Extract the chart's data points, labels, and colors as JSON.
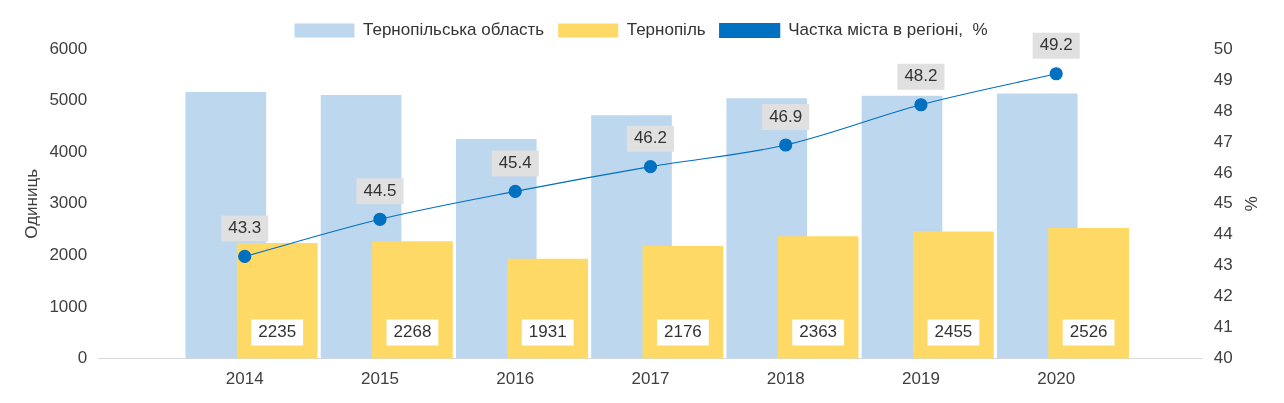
{
  "chart_data": {
    "type": "bar",
    "categories": [
      "2014",
      "2015",
      "2016",
      "2017",
      "2018",
      "2019",
      "2020"
    ],
    "ylabel": "Одиниць",
    "y2label": "%",
    "series": [
      {
        "name": "Тернопільська область",
        "color": "#bdd7ee",
        "values": [
          5160,
          5100,
          4250,
          4710,
          5040,
          5090,
          5130
        ]
      },
      {
        "name": "Тернопіль",
        "color": "#ffd966",
        "values": [
          2235,
          2268,
          1931,
          2176,
          2363,
          2455,
          2526
        ],
        "value_labels": [
          "2235",
          "2268",
          "1931",
          "2176",
          "2363",
          "2455",
          "2526"
        ]
      },
      {
        "name": "Частка міста в регіоні,  %",
        "type": "line",
        "axis": "y2",
        "color": "#0070c0",
        "marker": "circle",
        "values": [
          43.3,
          44.5,
          45.4,
          46.2,
          46.9,
          48.2,
          49.2
        ],
        "value_labels": [
          "43.3",
          "44.5",
          "45.4",
          "46.2",
          "46.9",
          "48.2",
          "49.2"
        ]
      }
    ],
    "ylim": [
      0,
      6000
    ],
    "yticks": [
      0,
      1000,
      2000,
      3000,
      4000,
      5000,
      6000
    ],
    "y2lim": [
      40,
      50
    ],
    "y2ticks": [
      40,
      41,
      42,
      43,
      44,
      45,
      46,
      47,
      48,
      49,
      50
    ],
    "grid": false,
    "legend": "top"
  }
}
